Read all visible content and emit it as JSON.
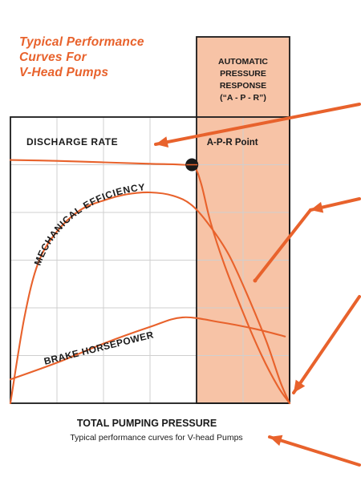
{
  "title": [
    "Typical Performance",
    "Curves For",
    "V-Head Pumps"
  ],
  "apr_box": {
    "lines": [
      "AUTOMATIC",
      "PRESSURE",
      "RESPONSE",
      "(“A - P - R”)"
    ],
    "point_label": "A-P-R Point"
  },
  "caption": {
    "main": "TOTAL PUMPING PRESSURE",
    "sub": "Typical performance curves for V-head Pumps"
  },
  "colors": {
    "accent": "#e8622c",
    "apr_fill": "#f7c3a6",
    "grid": "#cfcfcf",
    "frame": "#1a1a1a"
  },
  "chart_data": {
    "type": "line",
    "xlabel": "TOTAL PUMPING PRESSURE",
    "ylabel": "",
    "xlim": [
      0,
      6
    ],
    "ylim": [
      0,
      6
    ],
    "grid": true,
    "apr_region": [
      4,
      6
    ],
    "apr_point": [
      3.9,
      5.0
    ],
    "series": [
      {
        "name": "DISCHARGE RATE",
        "x": [
          0,
          1,
          2,
          3,
          3.7,
          3.95,
          4.1,
          4.3,
          4.6,
          5.0,
          5.4,
          5.75,
          6.0
        ],
        "y": [
          5.1,
          5.08,
          5.05,
          5.02,
          5.0,
          4.95,
          4.6,
          3.8,
          2.9,
          1.9,
          1.0,
          0.35,
          0.0
        ]
      },
      {
        "name": "MECHANICAL EFFICIENCY",
        "x": [
          0,
          0.3,
          0.6,
          1.0,
          1.5,
          2.0,
          2.5,
          3.0,
          3.5,
          3.9,
          4.3,
          4.7,
          5.1,
          5.5,
          5.8,
          6.0
        ],
        "y": [
          0.0,
          1.8,
          2.95,
          3.6,
          4.05,
          4.25,
          4.38,
          4.42,
          4.35,
          4.15,
          3.7,
          3.1,
          2.25,
          1.3,
          0.45,
          0.0
        ]
      },
      {
        "name": "BRAKE HORSEPOWER",
        "x": [
          0,
          1,
          2,
          3,
          3.7,
          4.5,
          5.3,
          5.9
        ],
        "y": [
          0.5,
          0.85,
          1.25,
          1.6,
          1.8,
          1.7,
          1.55,
          1.4
        ]
      }
    ],
    "annotations": [
      "A-P-R Point"
    ]
  }
}
